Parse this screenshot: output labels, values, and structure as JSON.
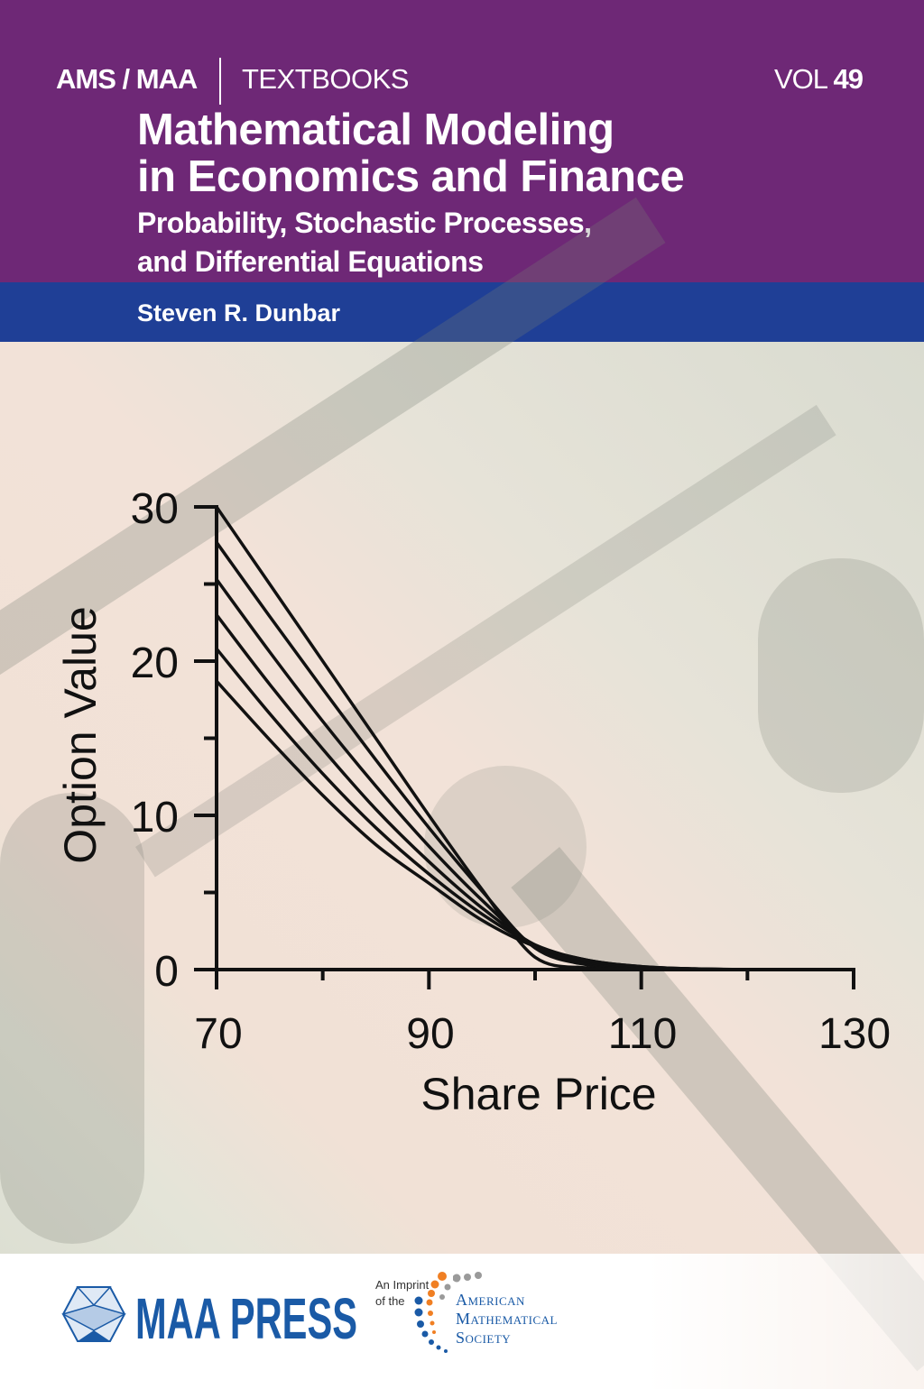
{
  "header": {
    "series_left": "AMS / MAA",
    "series_right": "TEXTBOOKS",
    "vol_label": "VOL",
    "vol_number": "49",
    "title_line1": "Mathematical Modeling",
    "title_line2": "in Economics and Finance",
    "subtitle_line1": "Probability, Stochastic Processes,",
    "subtitle_line2": "and Differential Equations",
    "author": "Steven R. Dunbar"
  },
  "colors": {
    "header_purple": "#6e2876",
    "author_blue": "#1f3f96",
    "maa_blue": "#1a5aa6",
    "ams_orange": "#f07f23",
    "ams_gray": "#9a9a9a"
  },
  "footer": {
    "publisher": "MAA PRESS",
    "imprint_line1": "An Imprint",
    "imprint_line2": "of the",
    "ams_line1": "American",
    "ams_line2": "Mathematical",
    "ams_line3": "Society"
  },
  "chart_data": {
    "type": "line",
    "xlabel": "Share Price",
    "ylabel": "Option Value",
    "xlim": [
      70,
      130
    ],
    "ylim": [
      0,
      30
    ],
    "xticks": [
      "70",
      "90",
      "110",
      "130"
    ],
    "xticks_minor": [
      80,
      100,
      120
    ],
    "yticks": [
      "0",
      "10",
      "20",
      "30"
    ],
    "yticks_minor": [
      5,
      15,
      25
    ],
    "grid": false,
    "x": [
      70,
      75,
      80,
      85,
      90,
      95,
      100,
      105,
      110,
      115,
      120,
      125,
      130
    ],
    "series": [
      {
        "values": [
          30.0,
          25.0,
          20.0,
          15.0,
          10.0,
          5.2,
          0.8,
          0.1,
          0.0,
          0.0,
          0.0,
          0.0,
          0.0
        ]
      },
      {
        "values": [
          27.7,
          22.9,
          18.2,
          13.6,
          9.2,
          5.1,
          1.4,
          0.3,
          0.05,
          0.0,
          0.0,
          0.0,
          0.0
        ]
      },
      {
        "values": [
          25.3,
          20.6,
          16.1,
          11.9,
          8.0,
          4.5,
          1.5,
          0.4,
          0.1,
          0.0,
          0.0,
          0.0,
          0.0
        ]
      },
      {
        "values": [
          23.0,
          18.5,
          14.3,
          10.4,
          7.0,
          4.0,
          1.6,
          0.5,
          0.15,
          0.05,
          0.0,
          0.0,
          0.0
        ]
      },
      {
        "values": [
          20.8,
          16.6,
          12.7,
          9.2,
          6.2,
          3.6,
          1.6,
          0.6,
          0.2,
          0.05,
          0.0,
          0.0,
          0.0
        ]
      },
      {
        "values": [
          18.7,
          14.9,
          11.3,
          8.1,
          5.6,
          3.2,
          1.5,
          0.6,
          0.2,
          0.05,
          0.0,
          0.0,
          0.0
        ]
      }
    ]
  }
}
